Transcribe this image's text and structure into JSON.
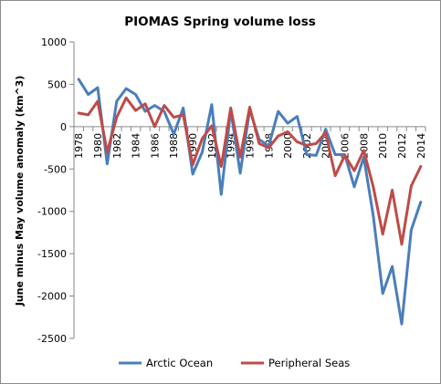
{
  "chart_data": {
    "type": "line",
    "title": "PIOMAS Spring volume loss",
    "xlabel": "",
    "ylabel": "June minus May volume anomaly (km^3)",
    "x": [
      1978,
      1979,
      1980,
      1981,
      1982,
      1983,
      1984,
      1985,
      1986,
      1987,
      1988,
      1989,
      1990,
      1991,
      1992,
      1993,
      1994,
      1995,
      1996,
      1997,
      1998,
      1999,
      2000,
      2001,
      2002,
      2003,
      2004,
      2005,
      2006,
      2007,
      2008,
      2009,
      2010,
      2011,
      2012,
      2013,
      2014
    ],
    "x_tick_labels": [
      "1978",
      "1980",
      "1982",
      "1984",
      "1986",
      "1988",
      "1990",
      "1992",
      "1994",
      "1996",
      "1998",
      "2000",
      "2002",
      "2004",
      "2006",
      "2008",
      "2010",
      "2012",
      "2014"
    ],
    "x_tick_values": [
      1978,
      1980,
      1982,
      1984,
      1986,
      1988,
      1990,
      1992,
      1994,
      1996,
      1998,
      2000,
      2002,
      2004,
      2006,
      2008,
      2010,
      2012,
      2014
    ],
    "y_tick_labels": [
      "1000",
      "500",
      "0",
      "-500",
      "-1000",
      "-1500",
      "-2000",
      "-2500"
    ],
    "y_tick_values": [
      1000,
      500,
      0,
      -500,
      -1000,
      -1500,
      -2000,
      -2500
    ],
    "ylim": [
      -2500,
      1000
    ],
    "grid": false,
    "legend": "bottom",
    "series": [
      {
        "name": "Arctic Ocean",
        "color": "#4a7ebb",
        "values": [
          560,
          380,
          460,
          -440,
          300,
          450,
          380,
          180,
          250,
          180,
          -90,
          220,
          -560,
          -300,
          260,
          -800,
          200,
          -550,
          200,
          -150,
          -230,
          180,
          40,
          120,
          -330,
          -340,
          -30,
          -330,
          -330,
          -710,
          -360,
          -1050,
          -1970,
          -1650,
          -2330,
          -1220,
          -890
        ]
      },
      {
        "name": "Peripheral Seas",
        "color": "#be4b48",
        "values": [
          160,
          140,
          300,
          -300,
          110,
          340,
          190,
          270,
          0,
          250,
          110,
          140,
          -450,
          -140,
          10,
          -470,
          220,
          -360,
          230,
          -200,
          -250,
          -110,
          -60,
          -180,
          -220,
          -200,
          -70,
          -580,
          -340,
          -520,
          -280,
          -710,
          -1270,
          -750,
          -1390,
          -700,
          -470
        ]
      }
    ]
  }
}
